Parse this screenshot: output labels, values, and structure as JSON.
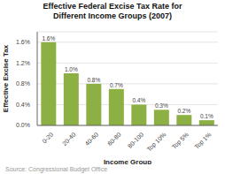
{
  "chart_data": {
    "type": "bar",
    "title": "Effective Federal Excise Tax Rate for",
    "subtitle": "Different Income Groups (2007)",
    "xlabel": "Income Group",
    "ylabel": "Effective Excise Tax",
    "categories": [
      "0-20",
      "20-40",
      "40-60",
      "60-80",
      "80-100",
      "Top 10%",
      "Top 5%",
      "Top 1%"
    ],
    "values": [
      1.6,
      1.0,
      0.8,
      0.7,
      0.4,
      0.3,
      0.2,
      0.1
    ],
    "value_labels": [
      "1.6%",
      "1.0%",
      "0.8%",
      "0.7%",
      "0.4%",
      "0.3%",
      "0.2%",
      "0.1%"
    ],
    "data_labels": true,
    "color": "#8cb043",
    "ylim": [
      0,
      1.8
    ],
    "yticks": [
      {
        "value": 0.0,
        "label": "0.0%"
      },
      {
        "value": 0.4,
        "label": "0.4%"
      },
      {
        "value": 0.8,
        "label": "0.8%"
      },
      {
        "value": 1.2,
        "label": "1.2%"
      },
      {
        "value": 1.6,
        "label": "1.6%"
      }
    ],
    "grid": true,
    "annotations": [
      "Source: Congressional Budget Office"
    ]
  }
}
